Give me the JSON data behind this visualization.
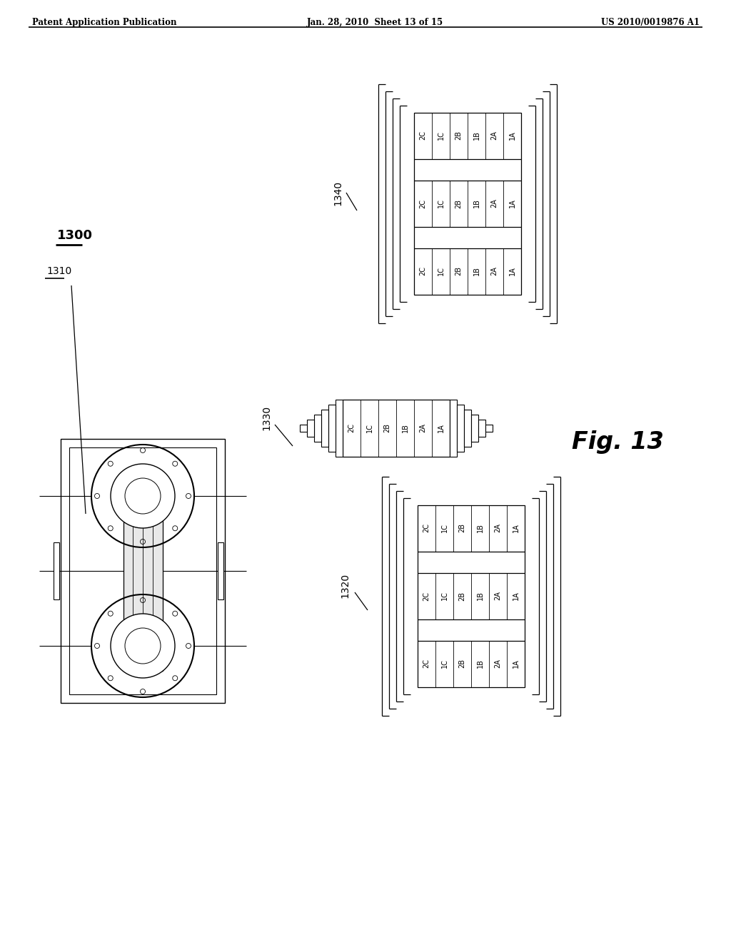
{
  "bg_color": "#ffffff",
  "header_left": "Patent Application Publication",
  "header_center": "Jan. 28, 2010  Sheet 13 of 15",
  "header_right": "US 2010/0019876 A1",
  "fig_label": "Fig. 13",
  "label_1300": "1300",
  "label_1310": "1310",
  "label_1320": "1320",
  "label_1330": "1330",
  "label_1340": "1340",
  "winding_labels": [
    "2C",
    "1C",
    "2B",
    "1B",
    "2A",
    "1A"
  ]
}
